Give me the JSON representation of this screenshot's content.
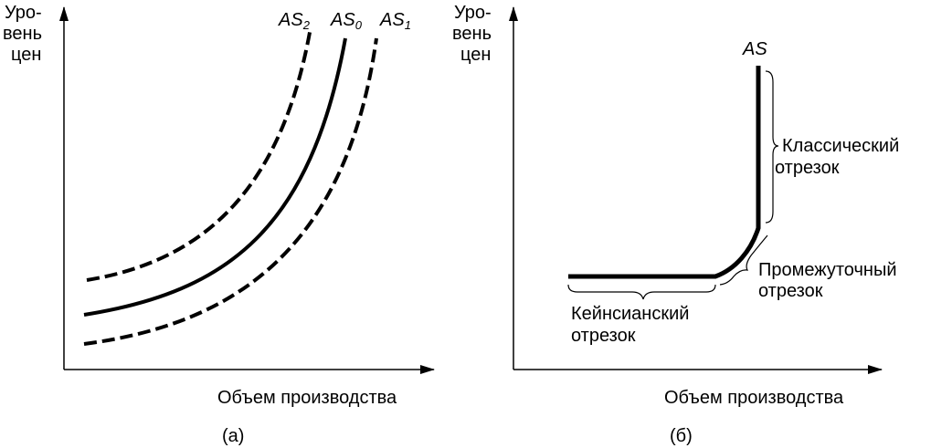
{
  "panel_a": {
    "y_label": [
      "Уро-",
      "вень",
      "цен"
    ],
    "x_label": "Объем производства",
    "curves": [
      {
        "label": "AS",
        "sub": "2"
      },
      {
        "label": "AS",
        "sub": "0"
      },
      {
        "label": "AS",
        "sub": "1"
      }
    ],
    "caption": "(а)"
  },
  "panel_b": {
    "y_label": [
      "Уро-",
      "вень",
      "цен"
    ],
    "x_label": "Объем производства",
    "curve_label": "AS",
    "segments": [
      {
        "lines": [
          "Классический",
          "отрезок"
        ]
      },
      {
        "lines": [
          "Промежуточный",
          "отрезок"
        ]
      },
      {
        "lines": [
          "Кейнсианский",
          "отрезок"
        ]
      }
    ],
    "caption": "(б)"
  }
}
